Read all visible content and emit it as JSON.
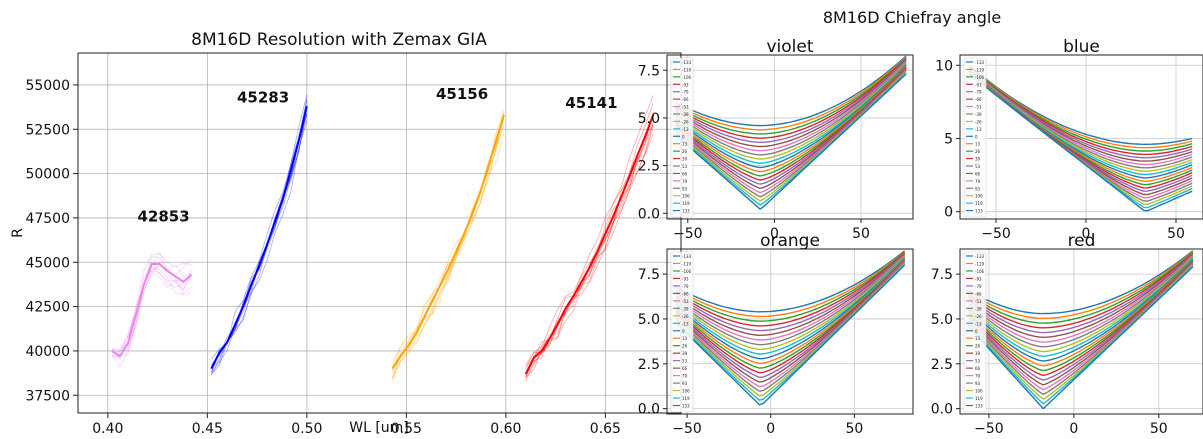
{
  "chart_data": [
    {
      "type": "line",
      "title": "8M16D Resolution with Zemax GIA",
      "xlabel": "WL [um]",
      "ylabel": "R",
      "xlim": [
        0.385,
        0.688
      ],
      "ylim": [
        36500,
        56800
      ],
      "xticks": [
        "0.40",
        "0.45",
        "0.50",
        "0.55",
        "0.60",
        "0.65"
      ],
      "yticks": [
        "37500",
        "40000",
        "42500",
        "45000",
        "47500",
        "50000",
        "52500",
        "55000"
      ],
      "grid": true,
      "series": [
        {
          "color": "#ee82ee",
          "x": [
            0.402,
            0.406,
            0.41,
            0.414,
            0.418,
            0.422,
            0.426,
            0.43,
            0.434,
            0.438,
            0.442
          ],
          "y": [
            40000,
            39700,
            40400,
            42000,
            43700,
            44900,
            44900,
            44500,
            44200,
            43900,
            44300
          ]
        },
        {
          "color": "#0000ff",
          "x": [
            0.452,
            0.456,
            0.46,
            0.464,
            0.468,
            0.472,
            0.476,
            0.48,
            0.484,
            0.488,
            0.492,
            0.496,
            0.5
          ],
          "y": [
            39000,
            39900,
            40500,
            41500,
            42500,
            43700,
            44800,
            46000,
            47300,
            48600,
            50200,
            51900,
            53800
          ]
        },
        {
          "color": "#ffa500",
          "x": [
            0.543,
            0.547,
            0.551,
            0.555,
            0.559,
            0.563,
            0.567,
            0.571,
            0.575,
            0.579,
            0.583,
            0.587,
            0.591,
            0.595,
            0.599
          ],
          "y": [
            39000,
            39700,
            40300,
            41000,
            41900,
            42800,
            43700,
            44600,
            45600,
            46600,
            47700,
            48900,
            50300,
            51800,
            53300
          ]
        },
        {
          "color": "#ff0000",
          "x": [
            0.61,
            0.614,
            0.618,
            0.622,
            0.626,
            0.63,
            0.634,
            0.638,
            0.642,
            0.646,
            0.65,
            0.654,
            0.658,
            0.662,
            0.666,
            0.67,
            0.674
          ],
          "y": [
            38700,
            39600,
            40000,
            40700,
            41500,
            42400,
            43100,
            43900,
            44700,
            45600,
            46600,
            47600,
            48700,
            49800,
            51000,
            52100,
            53300
          ]
        }
      ],
      "annotations": [
        {
          "text": "42853",
          "x": 0.428,
          "y": 47300
        },
        {
          "text": "45283",
          "x": 0.478,
          "y": 54000
        },
        {
          "text": "45156",
          "x": 0.578,
          "y": 54200
        },
        {
          "text": "45141",
          "x": 0.643,
          "y": 53700
        }
      ]
    },
    {
      "type": "line",
      "suptitle": "8M16D Chiefray angle",
      "legend_labels": [
        "-133",
        "-119",
        "-106",
        "-93",
        "-79",
        "-66",
        "-53",
        "-39",
        "-26",
        "-13",
        "0",
        "13",
        "26",
        "39",
        "53",
        "66",
        "79",
        "93",
        "106",
        "119",
        "133"
      ],
      "legend_position": "upper-left",
      "palette": [
        "#1f77b4",
        "#ff7f0e",
        "#2ca02c",
        "#d62728",
        "#9467bd",
        "#8c564b",
        "#e377c2",
        "#7f7f7f",
        "#bcbd22",
        "#17becf"
      ],
      "subplots": [
        {
          "title": "violet",
          "xlim": [
            -62,
            80
          ],
          "ylim": [
            -0.3,
            8.3
          ],
          "xticks": [
            -50,
            0,
            50
          ],
          "yticks": [
            0.0,
            2.5,
            5.0,
            7.5
          ],
          "x_start": -57,
          "x_end": 76,
          "min_x": -8,
          "min_top": 4.6,
          "left_top": 5.8,
          "left_bottom": 4.1,
          "right_top": 8.25,
          "right_bottom": 7.3,
          "bottom_min": 0.2
        },
        {
          "title": "blue",
          "xlim": [
            -70,
            65
          ],
          "ylim": [
            -0.5,
            10.7
          ],
          "xticks": [
            -50,
            0,
            50
          ],
          "yticks": [
            0,
            5,
            10
          ],
          "x_start": -65,
          "x_end": 59,
          "min_x": 33,
          "min_top": 4.6,
          "left_top": 10.0,
          "left_bottom": 9.4,
          "right_top": 5.0,
          "right_bottom": 1.4,
          "bottom_min": 0.0
        },
        {
          "title": "orange",
          "xlim": [
            -62,
            85
          ],
          "ylim": [
            -0.3,
            8.9
          ],
          "xticks": [
            -50,
            0,
            50
          ],
          "yticks": [
            0.0,
            2.5,
            5.0,
            7.5
          ],
          "x_start": -57,
          "x_end": 80,
          "min_x": -6,
          "min_top": 5.4,
          "left_top": 6.8,
          "left_bottom": 4.8,
          "right_top": 8.8,
          "right_bottom": 8.0,
          "bottom_min": 0.15
        },
        {
          "title": "red",
          "xlim": [
            -67,
            76
          ],
          "ylim": [
            -0.3,
            8.9
          ],
          "xticks": [
            -50,
            0,
            50
          ],
          "yticks": [
            0.0,
            2.5,
            5.0,
            7.5
          ],
          "x_start": -62,
          "x_end": 70,
          "min_x": -18,
          "min_top": 5.3,
          "left_top": 6.6,
          "left_bottom": 4.6,
          "right_top": 8.8,
          "right_bottom": 7.9,
          "bottom_min": 0.0
        }
      ]
    }
  ]
}
